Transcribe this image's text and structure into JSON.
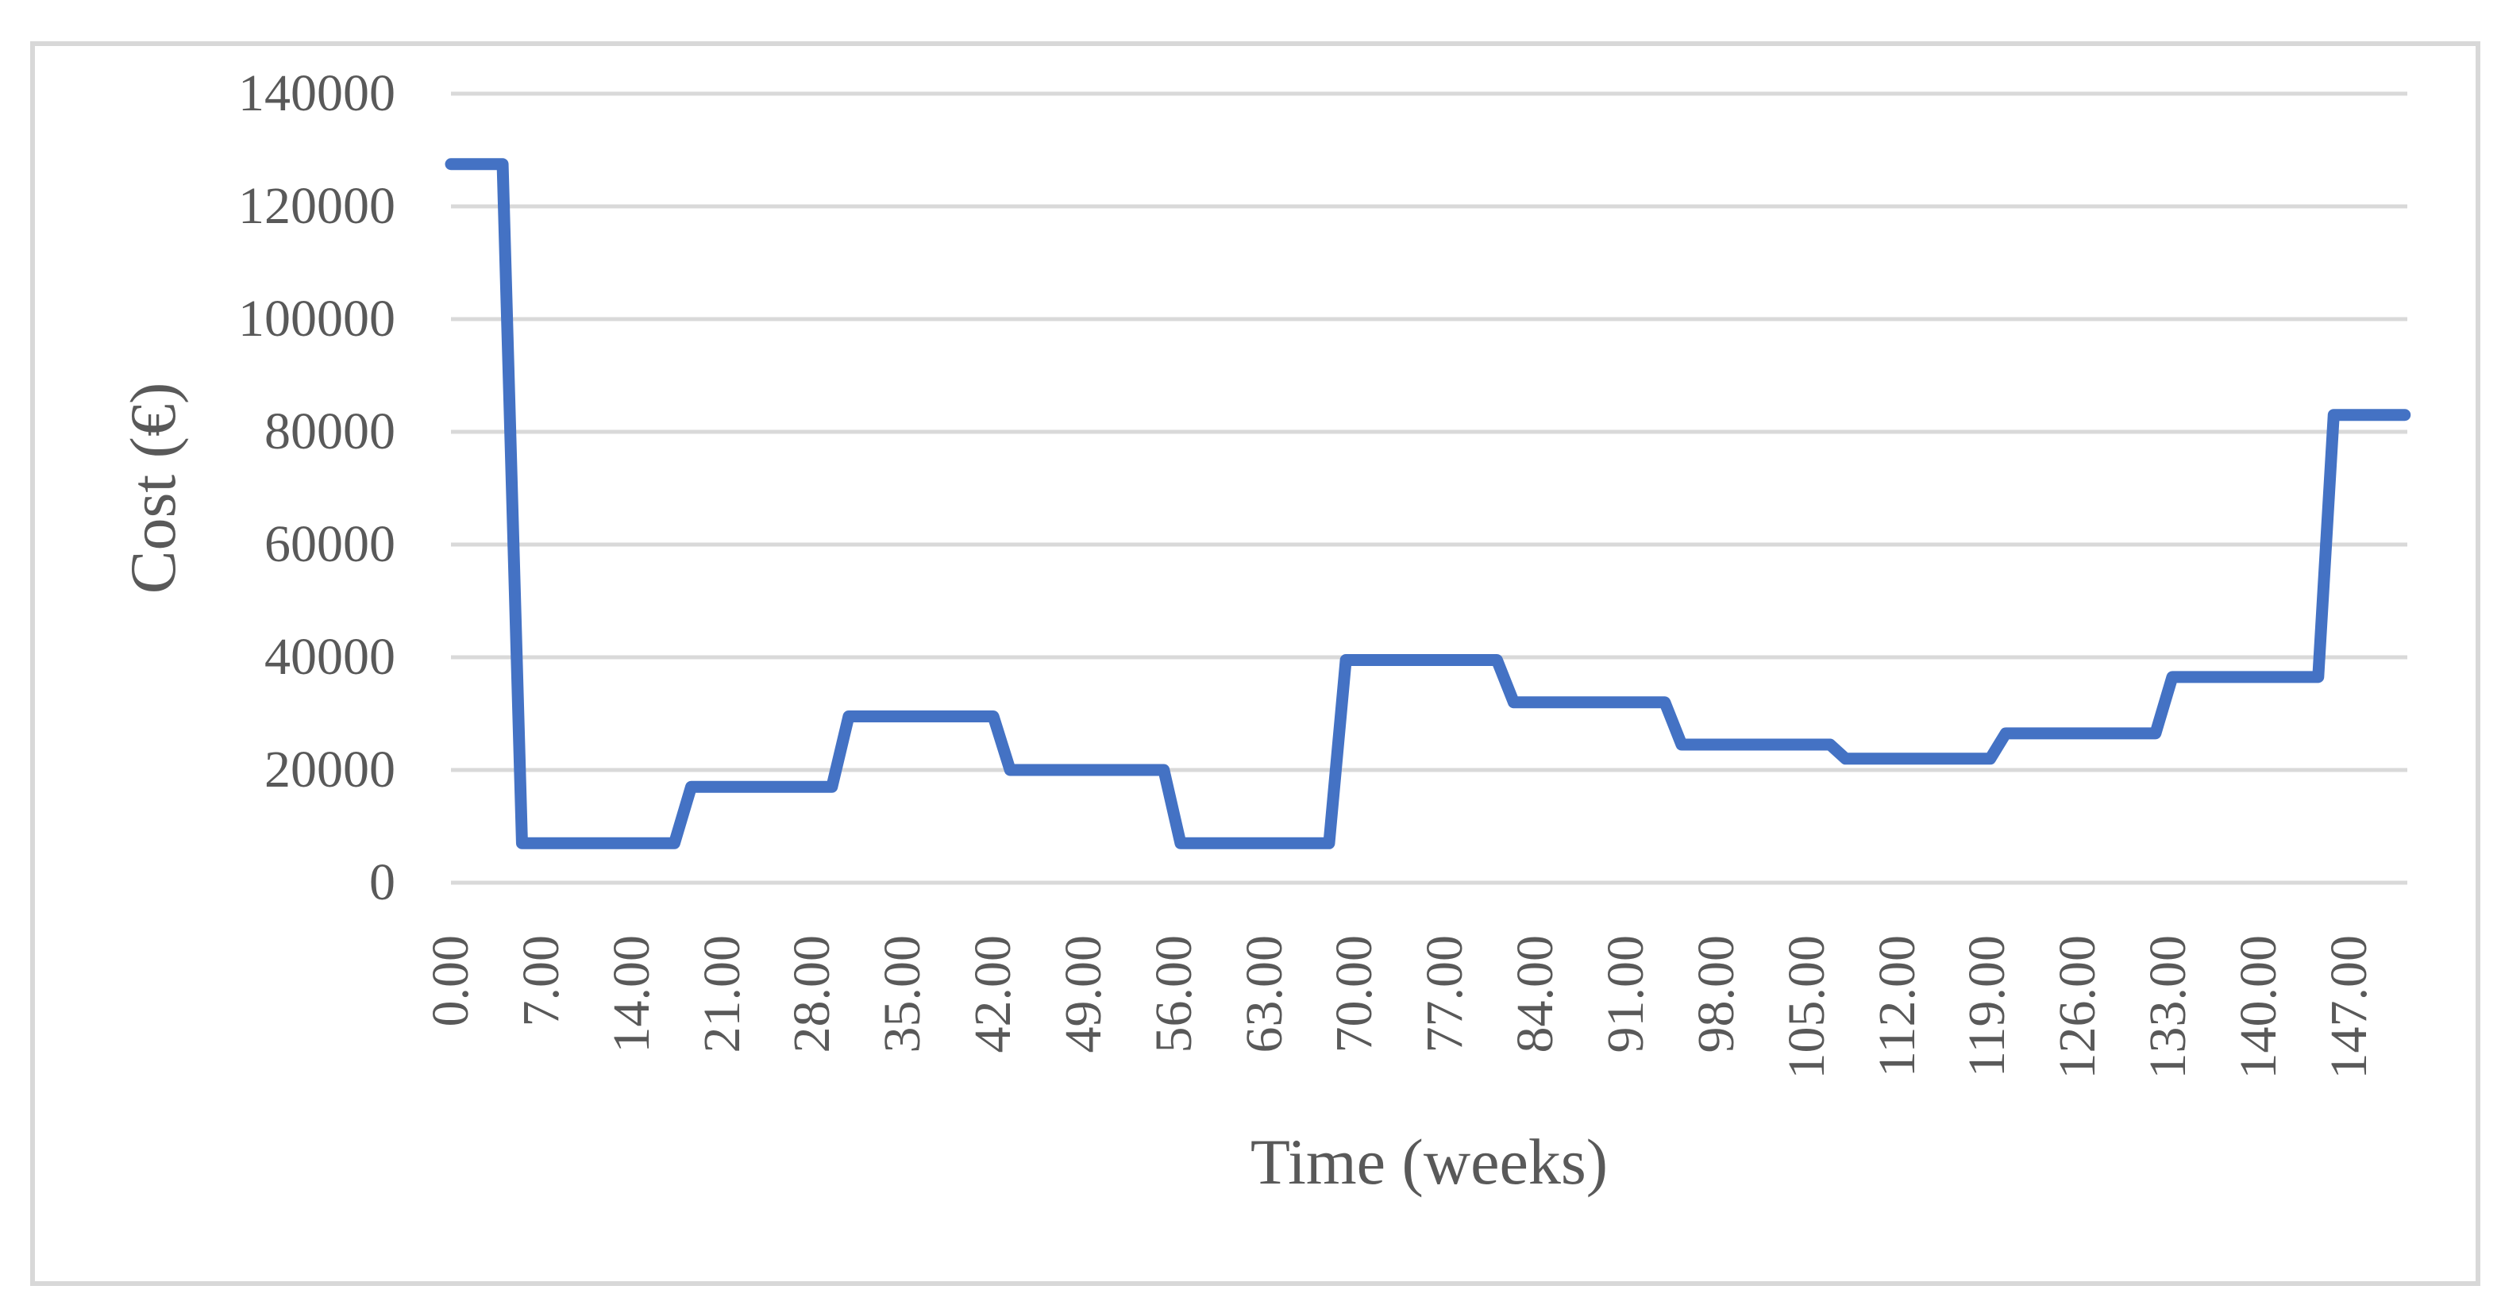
{
  "figure": {
    "background": "#ffffff",
    "border_color": "#d8d8d8",
    "text_color": "#595959"
  },
  "chart_data": {
    "type": "line",
    "title": "",
    "xlabel": "Time (weeks)",
    "ylabel": "Cost (€)",
    "legend": "none",
    "grid": "horizontal",
    "grid_color": "#d9d9d9",
    "x_range_weeks": [
      0,
      151.5
    ],
    "y_range": [
      0,
      140000
    ],
    "x_tick_labels": [
      "0.00",
      "7.00",
      "14.00",
      "21.00",
      "28.00",
      "35.00",
      "42.00",
      "49.00",
      "56.00",
      "63.00",
      "70.00",
      "77.00",
      "84.00",
      "91.00",
      "98.00",
      "105.00",
      "112.00",
      "119.00",
      "126.00",
      "133.00",
      "140.00",
      "147.00"
    ],
    "y_tick_labels": [
      "0",
      "20000",
      "40000",
      "60000",
      "80000",
      "100000",
      "120000",
      "140000"
    ],
    "series": [
      {
        "name": "Cost",
        "color": "#4472c4",
        "points": [
          [
            0,
            127500
          ],
          [
            4,
            127500
          ],
          [
            5.5,
            7000
          ],
          [
            17.3,
            7000
          ],
          [
            18.6,
            17000
          ],
          [
            29.5,
            17000
          ],
          [
            30.8,
            29500
          ],
          [
            42,
            29500
          ],
          [
            43.3,
            20000
          ],
          [
            55.2,
            20000
          ],
          [
            56.5,
            7000
          ],
          [
            68,
            7000
          ],
          [
            69.3,
            39500
          ],
          [
            81,
            39500
          ],
          [
            82.3,
            32000
          ],
          [
            94,
            32000
          ],
          [
            95.3,
            24500
          ],
          [
            106.8,
            24500
          ],
          [
            108,
            22000
          ],
          [
            119.2,
            22000
          ],
          [
            120.4,
            26500
          ],
          [
            132,
            26500
          ],
          [
            133.3,
            36500
          ],
          [
            144.6,
            36500
          ],
          [
            145.8,
            83000
          ],
          [
            151.3,
            83000
          ]
        ]
      }
    ]
  }
}
